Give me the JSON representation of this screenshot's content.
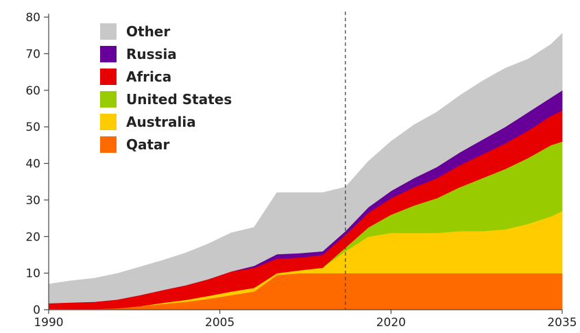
{
  "chart_data": {
    "type": "area",
    "stacked": true,
    "x_ticks": [
      "1990",
      "2005",
      "2020",
      "2035"
    ],
    "y_ticks": [
      0,
      10,
      20,
      30,
      40,
      50,
      60,
      70,
      80
    ],
    "xlim": [
      1990,
      2035
    ],
    "ylim": [
      0,
      80
    ],
    "grid": false,
    "legend_position": "top-left",
    "vertical_reference_line": {
      "x": 2016,
      "style": "dashed"
    },
    "x": [
      1990,
      1992,
      1994,
      1996,
      1998,
      2000,
      2002,
      2004,
      2006,
      2008,
      2010,
      2012,
      2014,
      2016,
      2018,
      2020,
      2022,
      2024,
      2026,
      2028,
      2030,
      2032,
      2034,
      2035
    ],
    "series": [
      {
        "name": "Qatar",
        "color": "#ff6a00",
        "values": [
          0.2,
          0.2,
          0.2,
          0.4,
          1.0,
          1.6,
          2.2,
          3.0,
          4.0,
          5.0,
          9.5,
          10.0,
          10.0,
          10.0,
          10.0,
          10.0,
          10.0,
          10.0,
          10.0,
          10.0,
          10.0,
          10.0,
          10.0,
          10.0
        ]
      },
      {
        "name": "Australia",
        "color": "#ffcc00",
        "values": [
          0.0,
          0.0,
          0.0,
          0.0,
          0.0,
          0.3,
          0.5,
          0.8,
          1.0,
          1.0,
          0.5,
          0.8,
          1.5,
          6.0,
          10.0,
          11.0,
          11.0,
          11.0,
          11.5,
          11.5,
          12.0,
          13.5,
          15.5,
          17.0
        ]
      },
      {
        "name": "United States",
        "color": "#99cc00",
        "values": [
          0.0,
          0.0,
          0.0,
          0.0,
          0.0,
          0.0,
          0.0,
          0.0,
          0.0,
          0.0,
          0.0,
          0.0,
          0.0,
          1.0,
          2.5,
          5.0,
          7.5,
          9.5,
          12.0,
          14.5,
          16.5,
          18.0,
          19.5,
          19.0
        ]
      },
      {
        "name": "Africa",
        "color": "#e60000",
        "values": [
          1.6,
          1.8,
          2.0,
          2.4,
          3.0,
          3.5,
          4.0,
          4.6,
          5.5,
          5.5,
          4.0,
          3.5,
          3.5,
          3.5,
          4.0,
          4.5,
          5.0,
          5.5,
          6.0,
          6.5,
          7.0,
          7.5,
          8.0,
          8.5
        ]
      },
      {
        "name": "Russia",
        "color": "#660099",
        "values": [
          0.0,
          0.0,
          0.0,
          0.0,
          0.0,
          0.0,
          0.0,
          0.0,
          0.0,
          0.5,
          1.2,
          1.2,
          1.0,
          1.0,
          1.5,
          2.0,
          2.5,
          3.0,
          3.5,
          4.0,
          4.5,
          5.0,
          5.0,
          5.5
        ]
      },
      {
        "name": "Other",
        "color": "#c8c8c8",
        "values": [
          5.2,
          5.9,
          6.4,
          7.1,
          7.7,
          8.1,
          8.8,
          9.6,
          10.5,
          10.5,
          16.8,
          16.5,
          16.0,
          12.0,
          12.5,
          13.5,
          14.5,
          15.0,
          15.5,
          16.0,
          16.0,
          14.5,
          14.5,
          15.5
        ]
      }
    ]
  }
}
